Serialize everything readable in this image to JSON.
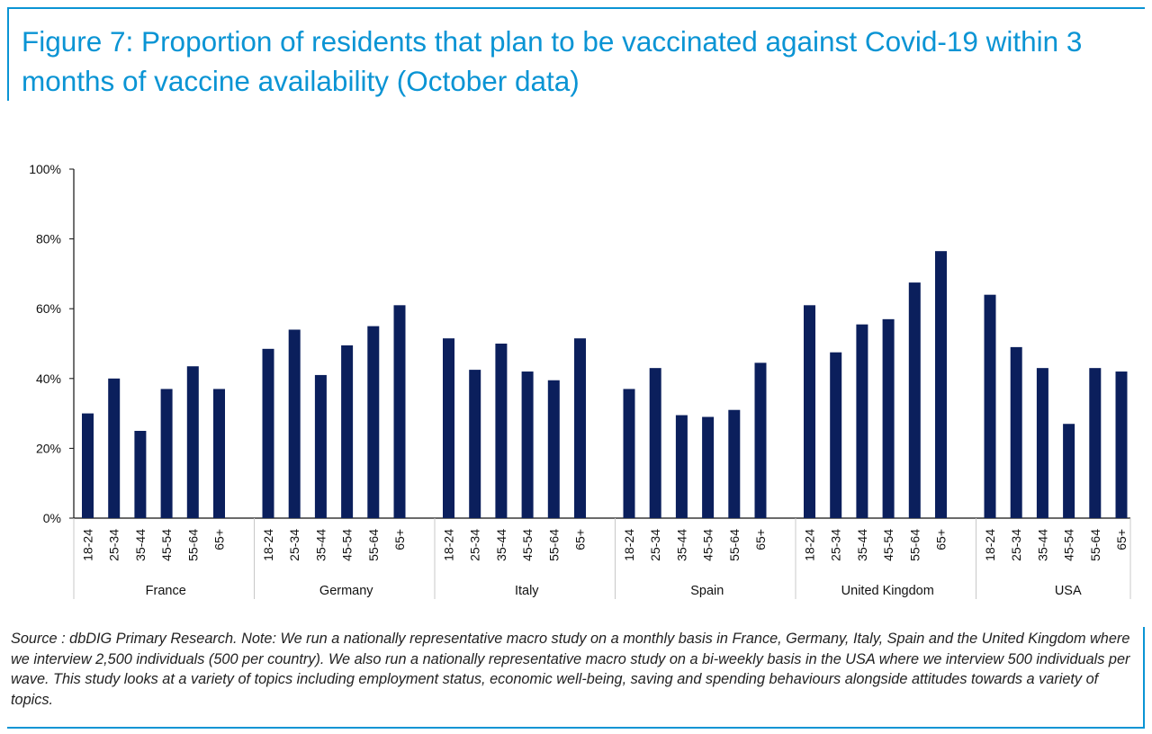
{
  "title": "Figure 7: Proportion of residents that plan to be vaccinated against Covid-19 within 3 months of vaccine availability (October data)",
  "source_note": "Source : dbDIG Primary Research. Note: We run a nationally representative macro study on a monthly basis in France, Germany, Italy, Spain and the United Kingdom where we interview 2,500 individuals (500 per country). We also run a nationally representative macro study on a bi-weekly basis in the USA where we interview 500 individuals per wave. This study looks at a variety of topics including employment status, economic well-being, saving and spending behaviours alongside attitudes towards a variety of topics.",
  "colors": {
    "accent": "#0a94d4",
    "bar": "#0b1f5c",
    "axis": "#111111",
    "separator": "#c8c8c8"
  },
  "chart_data": {
    "type": "bar",
    "title": "Figure 7: Proportion of residents that plan to be vaccinated against Covid-19 within 3 months of vaccine availability (October data)",
    "xlabel": "",
    "ylabel": "",
    "ylim": [
      0,
      100
    ],
    "y_ticks": [
      0,
      20,
      40,
      60,
      80,
      100
    ],
    "y_tick_labels": [
      "0%",
      "20%",
      "40%",
      "60%",
      "80%",
      "100%"
    ],
    "grid": false,
    "legend": "none",
    "age_groups": [
      "18-24",
      "25-34",
      "35-44",
      "45-54",
      "55-64",
      "65+"
    ],
    "groups": [
      {
        "name": "France",
        "values": [
          30,
          40,
          25,
          37,
          43.5,
          37
        ]
      },
      {
        "name": "Germany",
        "values": [
          48.5,
          54,
          41,
          49.5,
          55,
          61
        ]
      },
      {
        "name": "Italy",
        "values": [
          51.5,
          42.5,
          50,
          42,
          39.5,
          51.5
        ]
      },
      {
        "name": "Spain",
        "values": [
          37,
          43,
          29.5,
          29,
          31,
          44.5
        ]
      },
      {
        "name": "United Kingdom",
        "values": [
          61,
          47.5,
          55.5,
          57,
          67.5,
          76.5
        ]
      },
      {
        "name": "USA",
        "values": [
          64,
          49,
          43,
          27,
          43,
          42
        ]
      }
    ]
  }
}
